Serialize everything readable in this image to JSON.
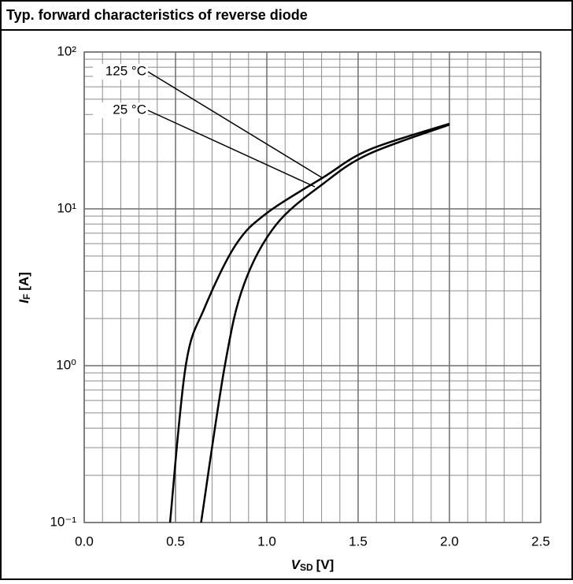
{
  "chart_data": {
    "type": "line",
    "title": "Typ. forward characteristics of reverse diode",
    "xlabel": {
      "symbol": "V",
      "subscript": "SD",
      "unit": "[V]"
    },
    "ylabel": {
      "symbol": "I",
      "subscript": "F",
      "unit": "[A]"
    },
    "xlim": [
      0,
      2.5
    ],
    "xticks": [
      {
        "value": 0,
        "label": "0.0"
      },
      0.5,
      {
        "value": 1,
        "label": "1.0"
      },
      1.5,
      {
        "value": 2,
        "label": "2.0"
      },
      2.5
    ],
    "xminor_step": 0.1,
    "ylim": [
      0.1,
      100
    ],
    "yticks": [
      {
        "value": 0.1,
        "label": "10⁻¹"
      },
      {
        "value": 1,
        "label": "10⁰"
      },
      {
        "value": 10,
        "label": "10¹"
      },
      {
        "value": 100,
        "label": "10²"
      }
    ],
    "ylog": true,
    "grid": true,
    "series": [
      {
        "name": "125 °C",
        "color": "#000000",
        "x": [
          0.47,
          0.556,
          0.66,
          0.83,
          1.0,
          1.31,
          1.56,
          2.0
        ],
        "values": [
          0.1,
          1,
          2.35,
          5.9,
          9.4,
          15.9,
          23.8,
          34.9
        ]
      },
      {
        "name": "25 °C",
        "color": "#000000",
        "x": [
          0.64,
          0.77,
          0.875,
          1.05,
          1.31,
          1.56,
          2.0
        ],
        "values": [
          0.1,
          1,
          3.3,
          7.9,
          14.5,
          22.4,
          34.4
        ]
      }
    ]
  }
}
